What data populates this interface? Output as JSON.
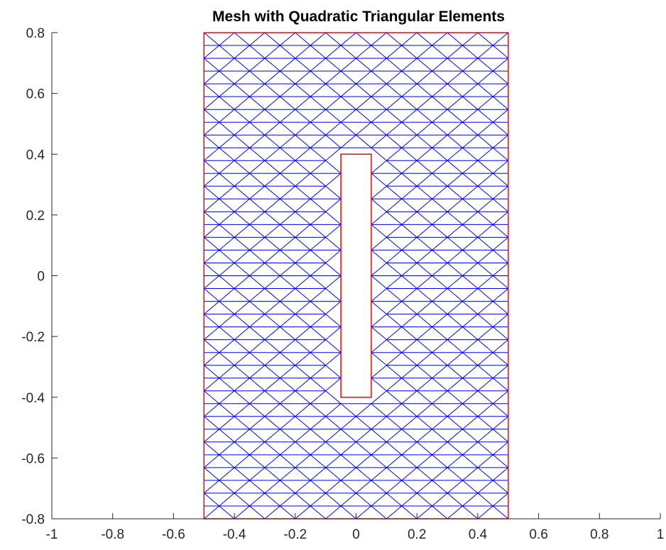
{
  "chart_data": {
    "type": "mesh",
    "title": "Mesh with Quadratic Triangular Elements",
    "xlabel": "",
    "ylabel": "",
    "xlim": [
      -1,
      1
    ],
    "ylim": [
      -0.8,
      0.8
    ],
    "x_ticks": [
      -1,
      -0.8,
      -0.6,
      -0.4,
      -0.2,
      0,
      0.2,
      0.4,
      0.6,
      0.8,
      1
    ],
    "y_ticks": [
      0.8,
      0.6,
      0.4,
      0.2,
      0,
      -0.2,
      -0.4,
      -0.6,
      -0.8
    ],
    "x_tick_labels": [
      "-1",
      "-0.8",
      "-0.6",
      "-0.4",
      "-0.2",
      "0",
      "0.2",
      "0.4",
      "0.6",
      "0.8",
      "1"
    ],
    "y_tick_labels": [
      "0.8",
      "0.6",
      "0.4",
      "0.2",
      "0",
      "-0.2",
      "-0.4",
      "-0.6",
      "-0.8"
    ],
    "grid": false,
    "domain_outer_rect": {
      "xmin": -0.5,
      "xmax": 0.5,
      "ymin": -0.8,
      "ymax": 0.8
    },
    "domain_hole_rect": {
      "xmin": -0.05,
      "xmax": 0.05,
      "ymin": -0.4,
      "ymax": 0.4
    },
    "mesh_color": "#0000ff",
    "boundary_color": "#ff0000"
  }
}
